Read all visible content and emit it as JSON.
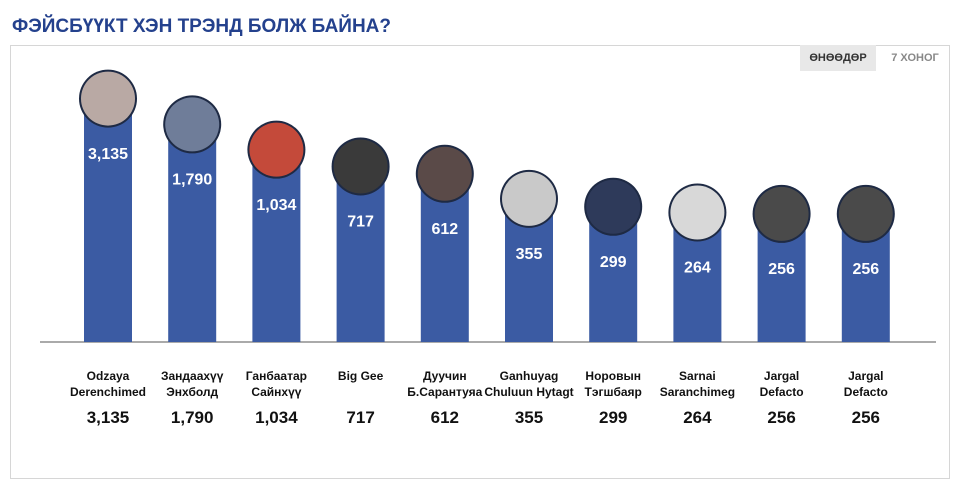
{
  "tabs": [
    "ӨНӨӨДӨР",
    "7 ХОНОГ"
  ],
  "chart_data": {
    "type": "bar",
    "title": "ФЭЙСБҮҮКТ ХЭН ТРЭНД БОЛЖ БАЙНА?",
    "categories": [
      "Odzaya\nDerenchimed",
      "Зандаахүү\nЭнхболд",
      "Ганбаатар\nСайнхүү",
      "Big Gee",
      "Дуучин\nБ.Сарантуяа",
      "Ganhuyag\nChuluun Hytagt",
      "Норовын\nТэгшбаяр",
      "Sarnai\nSaranchimeg",
      "Jargal\nDefacto",
      "Jargal\nDefacto"
    ],
    "values": [
      3135,
      1790,
      1034,
      717,
      612,
      355,
      299,
      264,
      256,
      256
    ],
    "value_labels": [
      "3,135",
      "1,790",
      "1,034",
      "717",
      "612",
      "355",
      "299",
      "264",
      "256",
      "256"
    ],
    "color": "#3b5ba3"
  }
}
